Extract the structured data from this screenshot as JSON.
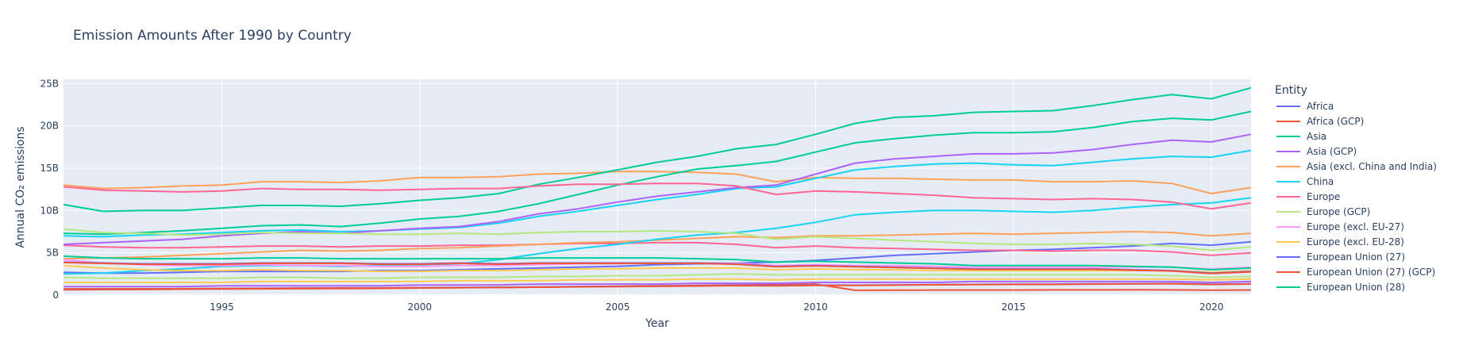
{
  "chart_data": {
    "type": "line",
    "title": "Emission Amounts After 1990 by Country",
    "xlabel": "Year",
    "ylabel": "Annual CO₂ emissions",
    "xlim": [
      1991,
      2021
    ],
    "ylim": [
      0,
      25.5
    ],
    "x_ticks": [
      1995,
      2000,
      2005,
      2010,
      2015,
      2020
    ],
    "y_ticks": [
      {
        "value": 0,
        "label": "0"
      },
      {
        "value": 5,
        "label": "5B"
      },
      {
        "value": 10,
        "label": "10B"
      },
      {
        "value": 15,
        "label": "15B"
      },
      {
        "value": 20,
        "label": "20B"
      },
      {
        "value": 25,
        "label": "25B"
      }
    ],
    "legend_title": "Entity",
    "legend_position": "right",
    "grid": true,
    "plot_background": "#e5ecf6",
    "x": [
      1991,
      1992,
      1993,
      1994,
      1995,
      1996,
      1997,
      1998,
      1999,
      2000,
      2001,
      2002,
      2003,
      2004,
      2005,
      2006,
      2007,
      2008,
      2009,
      2010,
      2011,
      2012,
      2013,
      2014,
      2015,
      2016,
      2017,
      2018,
      2019,
      2020,
      2021
    ],
    "series": [
      {
        "name": "Africa",
        "color": "#636efa",
        "values": [
          0.73,
          0.74,
          0.75,
          0.76,
          0.79,
          0.81,
          0.83,
          0.84,
          0.85,
          0.88,
          0.9,
          0.92,
          0.96,
          1.0,
          1.03,
          1.06,
          1.1,
          1.15,
          1.13,
          1.18,
          1.17,
          1.21,
          1.25,
          1.27,
          1.3,
          1.3,
          1.33,
          1.35,
          1.37,
          1.29,
          1.34
        ]
      },
      {
        "name": "Africa (GCP)",
        "color": "#ef553b",
        "values": [
          0.72,
          0.73,
          0.74,
          0.75,
          0.77,
          0.79,
          0.81,
          0.82,
          0.83,
          0.86,
          0.88,
          0.9,
          0.94,
          0.98,
          1.01,
          1.04,
          1.08,
          1.12,
          1.1,
          1.15,
          1.14,
          1.18,
          1.22,
          1.24,
          1.27,
          1.27,
          1.3,
          1.32,
          1.34,
          1.26,
          1.31
        ]
      },
      {
        "name": "Asia",
        "color": "#00cc96",
        "values": [
          7.3,
          7.2,
          7.4,
          7.6,
          7.9,
          8.2,
          8.3,
          8.1,
          8.5,
          9.0,
          9.3,
          9.9,
          10.8,
          11.9,
          13.0,
          14.0,
          14.9,
          15.3,
          15.8,
          16.9,
          18.0,
          18.5,
          18.9,
          19.2,
          19.2,
          19.3,
          19.8,
          20.5,
          20.9,
          20.7,
          21.7
        ]
      },
      {
        "name": "Asia (GCP)",
        "color": "#ab63fa",
        "values": [
          6.0,
          6.2,
          6.4,
          6.6,
          7.0,
          7.3,
          7.5,
          7.3,
          7.6,
          7.9,
          8.1,
          8.7,
          9.6,
          10.2,
          11.0,
          11.7,
          12.2,
          12.7,
          13.0,
          14.3,
          15.6,
          16.1,
          16.4,
          16.7,
          16.7,
          16.8,
          17.2,
          17.8,
          18.3,
          18.1,
          19.0
        ]
      },
      {
        "name": "Asia (excl. China and India)",
        "color": "#ffa15a",
        "values": [
          4.3,
          4.4,
          4.5,
          4.7,
          4.9,
          5.1,
          5.3,
          5.2,
          5.3,
          5.5,
          5.6,
          5.8,
          6.0,
          6.2,
          6.3,
          6.5,
          6.7,
          6.9,
          6.8,
          7.0,
          7.0,
          7.1,
          7.2,
          7.3,
          7.2,
          7.3,
          7.4,
          7.5,
          7.4,
          7.0,
          7.3
        ]
      },
      {
        "name": "China",
        "color": "#19d3f3",
        "values": [
          2.5,
          2.6,
          2.9,
          3.1,
          3.4,
          3.5,
          3.5,
          3.4,
          3.5,
          3.6,
          3.7,
          4.2,
          4.9,
          5.5,
          6.0,
          6.6,
          7.1,
          7.4,
          7.9,
          8.6,
          9.5,
          9.8,
          10.0,
          10.0,
          9.9,
          9.8,
          10.0,
          10.4,
          10.7,
          10.9,
          11.5
        ]
      },
      {
        "name": "Europe",
        "color": "#ff6692",
        "values": [
          12.8,
          12.4,
          12.3,
          12.2,
          12.3,
          12.6,
          12.5,
          12.5,
          12.4,
          12.5,
          12.6,
          12.6,
          12.9,
          13.1,
          13.1,
          13.2,
          13.2,
          12.9,
          11.9,
          12.3,
          12.2,
          12.0,
          11.8,
          11.5,
          11.4,
          11.3,
          11.4,
          11.3,
          11.0,
          10.2,
          10.9
        ]
      },
      {
        "name": "Europe (GCP)",
        "color": "#b6e880",
        "values": [
          7.8,
          7.4,
          7.3,
          7.1,
          7.2,
          7.4,
          7.3,
          7.3,
          7.2,
          7.2,
          7.3,
          7.2,
          7.4,
          7.5,
          7.5,
          7.6,
          7.5,
          7.3,
          6.6,
          6.9,
          6.7,
          6.5,
          6.3,
          6.1,
          6.0,
          6.0,
          6.1,
          6.0,
          5.8,
          5.3,
          5.7
        ]
      },
      {
        "name": "Europe (excl. EU-27)",
        "color": "#ff97ff",
        "values": [
          4.2,
          3.8,
          3.6,
          3.5,
          3.5,
          3.6,
          3.5,
          3.5,
          3.4,
          3.4,
          3.5,
          3.5,
          3.6,
          3.7,
          3.7,
          3.8,
          3.8,
          3.8,
          3.5,
          3.6,
          3.5,
          3.5,
          3.4,
          3.3,
          3.3,
          3.3,
          3.3,
          3.3,
          3.3,
          3.1,
          3.3
        ]
      },
      {
        "name": "Europe (excl. EU-28)",
        "color": "#fecb52",
        "values": [
          3.5,
          3.2,
          3.0,
          2.9,
          2.9,
          3.0,
          2.9,
          2.9,
          2.8,
          2.8,
          2.9,
          2.9,
          3.0,
          3.1,
          3.1,
          3.2,
          3.2,
          3.2,
          3.0,
          3.1,
          3.0,
          3.0,
          2.9,
          2.9,
          2.9,
          2.9,
          2.9,
          2.9,
          2.9,
          2.7,
          2.9
        ]
      },
      {
        "name": "European Union (27)",
        "color": "#636efa",
        "values": [
          3.9,
          3.8,
          3.7,
          3.7,
          3.7,
          3.8,
          3.8,
          3.8,
          3.7,
          3.7,
          3.8,
          3.7,
          3.8,
          3.8,
          3.8,
          3.8,
          3.8,
          3.7,
          3.4,
          3.5,
          3.4,
          3.3,
          3.2,
          3.1,
          3.1,
          3.1,
          3.1,
          3.0,
          2.9,
          2.6,
          2.8
        ]
      },
      {
        "name": "European Union (27) (GCP)",
        "color": "#ef553b",
        "values": [
          3.85,
          3.75,
          3.65,
          3.65,
          3.65,
          3.75,
          3.75,
          3.75,
          3.65,
          3.65,
          3.75,
          3.65,
          3.75,
          3.75,
          3.75,
          3.75,
          3.75,
          3.65,
          3.35,
          3.45,
          3.35,
          3.25,
          3.15,
          3.05,
          3.05,
          3.05,
          3.05,
          2.95,
          2.85,
          2.55,
          2.75
        ]
      },
      {
        "name": "European Union (28)",
        "color": "#00cc96",
        "values": [
          4.6,
          4.4,
          4.3,
          4.3,
          4.3,
          4.4,
          4.4,
          4.3,
          4.3,
          4.3,
          4.3,
          4.3,
          4.4,
          4.4,
          4.4,
          4.4,
          4.3,
          4.2,
          3.9,
          4.0,
          3.9,
          3.8,
          3.7,
          3.5,
          3.5,
          3.5,
          3.5,
          3.4,
          3.3,
          3.0,
          3.2
        ]
      }
    ],
    "extra_lines": [
      {
        "color": "#ffa15a",
        "values": [
          13.0,
          12.6,
          12.7,
          12.9,
          13.0,
          13.4,
          13.4,
          13.3,
          13.5,
          13.9,
          13.9,
          14.0,
          14.3,
          14.4,
          14.6,
          14.6,
          14.5,
          14.3,
          13.4,
          13.9,
          13.8,
          13.8,
          13.7,
          13.6,
          13.6,
          13.4,
          13.4,
          13.5,
          13.2,
          12.0,
          12.7
        ]
      },
      {
        "color": "#00cc96",
        "values": [
          10.7,
          9.9,
          10.0,
          10.0,
          10.3,
          10.6,
          10.6,
          10.5,
          10.8,
          11.2,
          11.5,
          12.0,
          13.1,
          13.9,
          14.8,
          15.7,
          16.4,
          17.3,
          17.8,
          19.0,
          20.3,
          21.0,
          21.2,
          21.6,
          21.7,
          21.8,
          22.4,
          23.1,
          23.7,
          23.2,
          24.5
        ]
      },
      {
        "color": "#19d3f3",
        "values": [
          7.0,
          6.9,
          7.1,
          7.2,
          7.4,
          7.6,
          7.7,
          7.5,
          7.6,
          7.8,
          8.0,
          8.5,
          9.3,
          9.9,
          10.6,
          11.3,
          11.9,
          12.6,
          12.8,
          13.8,
          14.8,
          15.2,
          15.5,
          15.6,
          15.4,
          15.3,
          15.7,
          16.1,
          16.4,
          16.3,
          17.1
        ]
      },
      {
        "color": "#636efa",
        "values": [
          2.7,
          2.6,
          2.6,
          2.7,
          2.8,
          2.8,
          2.8,
          2.8,
          2.9,
          2.9,
          3.0,
          3.1,
          3.2,
          3.3,
          3.4,
          3.6,
          3.7,
          3.8,
          3.9,
          4.1,
          4.4,
          4.7,
          4.9,
          5.1,
          5.3,
          5.4,
          5.6,
          5.8,
          6.1,
          5.9,
          6.3
        ]
      },
      {
        "color": "#ef553b",
        "values": [
          0.63,
          0.66,
          0.67,
          0.7,
          0.72,
          0.74,
          0.76,
          0.78,
          0.8,
          0.84,
          0.88,
          0.91,
          0.95,
          0.99,
          1.04,
          1.09,
          1.14,
          1.2,
          1.25,
          1.3,
          0.57,
          0.58,
          0.6,
          0.6,
          0.6,
          0.62,
          0.62,
          0.64,
          0.62,
          0.59,
          0.6
        ]
      },
      {
        "color": "#b6e880",
        "values": [
          2.1,
          2.0,
          2.0,
          2.0,
          2.0,
          2.1,
          2.1,
          2.0,
          2.0,
          2.1,
          2.1,
          2.1,
          2.2,
          2.2,
          2.3,
          2.3,
          2.4,
          2.5,
          2.4,
          2.4,
          2.4,
          2.4,
          2.4,
          2.4,
          2.4,
          2.4,
          2.4,
          2.4,
          2.3,
          2.1,
          2.2
        ]
      },
      {
        "color": "#fecb52",
        "values": [
          1.5,
          1.5,
          1.5,
          1.5,
          1.5,
          1.6,
          1.6,
          1.6,
          1.6,
          1.6,
          1.7,
          1.7,
          1.7,
          1.8,
          1.8,
          1.8,
          1.9,
          1.9,
          1.8,
          1.9,
          1.9,
          1.9,
          1.9,
          1.9,
          1.9,
          1.9,
          1.9,
          1.9,
          1.9,
          1.8,
          1.9
        ]
      },
      {
        "color": "#ab63fa",
        "values": [
          1.0,
          1.0,
          1.0,
          1.0,
          1.1,
          1.1,
          1.1,
          1.1,
          1.1,
          1.2,
          1.2,
          1.2,
          1.3,
          1.3,
          1.3,
          1.3,
          1.4,
          1.4,
          1.4,
          1.5,
          1.5,
          1.5,
          1.5,
          1.6,
          1.6,
          1.6,
          1.6,
          1.6,
          1.6,
          1.5,
          1.6
        ]
      },
      {
        "color": "#ff6692",
        "values": [
          5.9,
          5.7,
          5.6,
          5.6,
          5.7,
          5.8,
          5.8,
          5.7,
          5.8,
          5.8,
          5.9,
          5.9,
          6.0,
          6.1,
          6.1,
          6.2,
          6.2,
          6.0,
          5.6,
          5.8,
          5.6,
          5.5,
          5.4,
          5.3,
          5.3,
          5.2,
          5.3,
          5.3,
          5.1,
          4.7,
          5.0
        ]
      }
    ]
  }
}
